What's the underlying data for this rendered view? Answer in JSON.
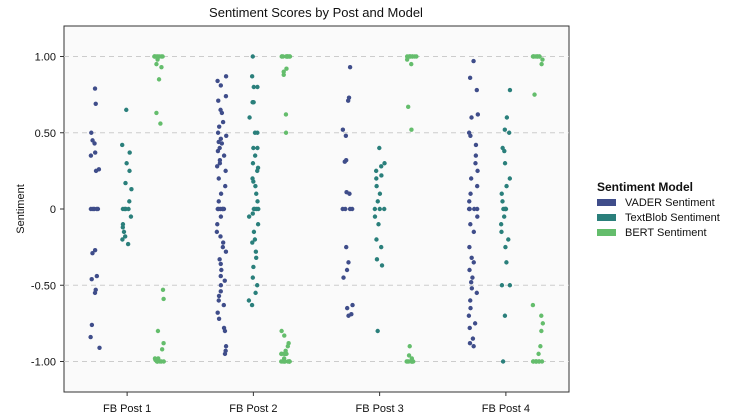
{
  "chart_data": {
    "type": "scatter",
    "subtype": "strip",
    "title": "Sentiment Scores by Post and Model",
    "xlabel": "",
    "ylabel": "Sentiment",
    "ylim": [
      -1.2,
      1.2
    ],
    "yticks": [
      1.0,
      0.5,
      0,
      -0.5,
      -1.0
    ],
    "ytick_labels": [
      "1.00",
      "0.50",
      "0",
      "-0.50",
      "-1.00"
    ],
    "grid": "dashed horizontal",
    "categories": [
      "FB Post 1",
      "FB Post 2",
      "FB Post 3",
      "FB Post 4"
    ],
    "legend": {
      "title": "Sentiment Model",
      "placement": "right"
    },
    "series": [
      {
        "name": "VADER Sentiment",
        "color": "#3f4d8a",
        "values": [
          [
            0.79,
            0.69,
            0.5,
            0.45,
            0.43,
            0.37,
            0.35,
            0.26,
            0.25,
            0,
            0,
            0,
            0,
            0,
            -0.27,
            -0.29,
            -0.44,
            -0.46,
            -0.53,
            -0.55,
            -0.76,
            -0.84,
            -0.91
          ],
          [
            0.87,
            0.84,
            0.81,
            0.74,
            0.71,
            0.65,
            0.63,
            0.57,
            0.54,
            0.5,
            0.48,
            0.46,
            0.44,
            0.43,
            0.4,
            0.38,
            0.35,
            0.32,
            0.3,
            0.28,
            0.25,
            0.2,
            0.15,
            0.1,
            0.05,
            0,
            0,
            0,
            0,
            0,
            0,
            -0.05,
            -0.1,
            -0.15,
            -0.18,
            -0.22,
            -0.25,
            -0.28,
            -0.33,
            -0.36,
            -0.4,
            -0.44,
            -0.47,
            -0.5,
            -0.54,
            -0.57,
            -0.6,
            -0.63,
            -0.68,
            -0.72,
            -0.78,
            -0.8,
            -0.9,
            -0.93,
            -0.95
          ],
          [
            0.93,
            0.73,
            0.71,
            0.52,
            0.48,
            0.32,
            0.31,
            0.11,
            0.1,
            0,
            0,
            0,
            0,
            -0.25,
            -0.35,
            -0.4,
            -0.45,
            -0.63,
            -0.65,
            -0.69,
            -0.7
          ],
          [
            0.97,
            0.86,
            0.78,
            0.62,
            0.6,
            0.5,
            0.48,
            0.42,
            0.35,
            0.3,
            0.25,
            0.2,
            0.15,
            0.1,
            0.05,
            0,
            0,
            0,
            0,
            -0.05,
            -0.1,
            -0.15,
            -0.25,
            -0.32,
            -0.35,
            -0.4,
            -0.45,
            -0.48,
            -0.52,
            -0.55,
            -0.6,
            -0.65,
            -0.7,
            -0.75,
            -0.78,
            -0.85,
            -0.88,
            -0.9
          ]
        ]
      },
      {
        "name": "TextBlob Sentiment",
        "color": "#2a7f7b",
        "values": [
          [
            0.65,
            0.42,
            0.37,
            0.3,
            0.25,
            0.17,
            0.13,
            0.05,
            0,
            0,
            0,
            0,
            -0.05,
            -0.1,
            -0.12,
            -0.15,
            -0.18,
            -0.2,
            -0.23
          ],
          [
            1.0,
            0.87,
            0.8,
            0.8,
            0.7,
            0.7,
            0.6,
            0.5,
            0.5,
            0.4,
            0.4,
            0.35,
            0.3,
            0.27,
            0.25,
            0.2,
            0.18,
            0.15,
            0.1,
            0.05,
            0,
            0,
            0,
            0,
            -0.03,
            -0.05,
            -0.1,
            -0.15,
            -0.2,
            -0.22,
            -0.28,
            -0.32,
            -0.38,
            -0.45,
            -0.5,
            -0.55,
            -0.6,
            -0.63
          ],
          [
            0.4,
            0.3,
            0.28,
            0.25,
            0.22,
            0.2,
            0.15,
            0.1,
            0.05,
            0,
            0,
            0,
            -0.05,
            -0.1,
            -0.2,
            -0.25,
            -0.33,
            -0.37,
            -0.8
          ],
          [
            0.78,
            0.6,
            0.52,
            0.5,
            0.4,
            0.38,
            0.3,
            0.2,
            0.15,
            0.1,
            0.05,
            0,
            0,
            0,
            0,
            -0.05,
            -0.1,
            -0.15,
            -0.2,
            -0.25,
            -0.35,
            -0.5,
            -0.5,
            -0.7,
            -1.0
          ]
        ]
      },
      {
        "name": "BERT Sentiment",
        "color": "#64bd6c",
        "values": [
          [
            1,
            1,
            1,
            1,
            1,
            1,
            1,
            1,
            0.98,
            0.95,
            0.93,
            0.85,
            0.63,
            0.56,
            -0.53,
            -0.59,
            -0.8,
            -0.88,
            -0.92,
            -0.98,
            -0.98,
            -0.99,
            -0.99,
            -1,
            -1,
            -1,
            -1,
            -1,
            -1
          ],
          [
            1,
            1,
            1,
            1,
            1,
            1,
            1,
            1,
            1,
            1,
            0.92,
            0.9,
            0.88,
            0.62,
            0.5,
            -0.8,
            -0.83,
            -0.88,
            -0.9,
            -0.93,
            -0.95,
            -0.95,
            -0.95,
            -0.95,
            -0.95,
            -0.98,
            -1,
            -1,
            -1,
            -1,
            -1,
            -1,
            -1,
            -1,
            -1,
            -1
          ],
          [
            1,
            1,
            1,
            1,
            1,
            1,
            1,
            1,
            0.98,
            0.95,
            0.67,
            0.52,
            -0.9,
            -0.96,
            -0.98,
            -1,
            -1,
            -1,
            -1,
            -1,
            -1,
            -1,
            -1
          ],
          [
            1,
            1,
            1,
            1,
            1,
            1,
            1,
            1,
            0.98,
            0.95,
            0.75,
            -0.63,
            -0.7,
            -0.75,
            -0.8,
            -0.9,
            -0.95,
            -1,
            -1,
            -1,
            -1,
            -1,
            -1,
            -1,
            -1
          ]
        ]
      }
    ]
  }
}
